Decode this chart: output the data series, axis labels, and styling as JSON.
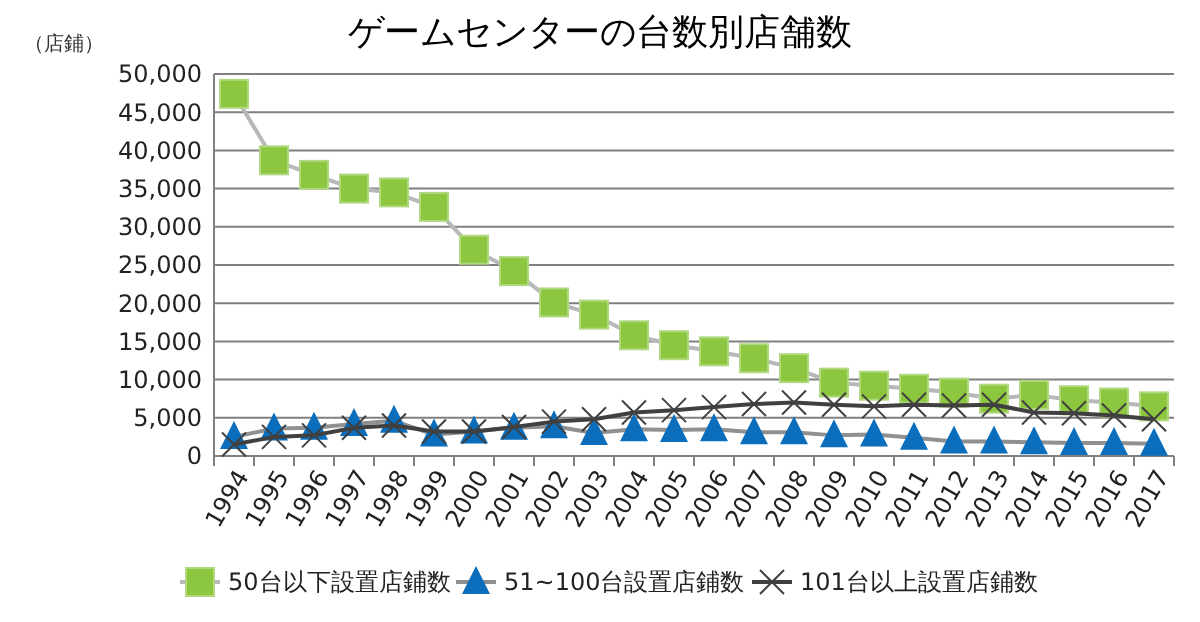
{
  "chart_data": {
    "type": "line",
    "title": "ゲームセンターの台数別店舗数",
    "ylabel": "（店鋪）",
    "categories": [
      "1994",
      "1995",
      "1996",
      "1997",
      "1998",
      "1999",
      "2000",
      "2001",
      "2002",
      "2003",
      "2004",
      "2005",
      "2006",
      "2007",
      "2008",
      "2009",
      "2010",
      "2011",
      "2012",
      "2013",
      "2014",
      "2015",
      "2016",
      "2017"
    ],
    "series": [
      {
        "name": "50台以下設置店鋪数",
        "color": "#8dc63f",
        "marker": "square",
        "values": [
          47400,
          38700,
          36800,
          35000,
          34500,
          32600,
          27000,
          24200,
          20100,
          18500,
          15800,
          14500,
          13700,
          12800,
          11500,
          9600,
          9200,
          8800,
          8300,
          7500,
          8000,
          7300,
          7000,
          6500
        ]
      },
      {
        "name": "51~100台設置店鋪数",
        "color": "#0a6ebd",
        "marker": "triangle",
        "values": [
          2500,
          3600,
          3700,
          4200,
          4600,
          2800,
          3200,
          3700,
          3900,
          3000,
          3500,
          3400,
          3500,
          3100,
          3100,
          2700,
          2800,
          2400,
          1900,
          1900,
          1800,
          1700,
          1700,
          1600
        ]
      },
      {
        "name": "101台以上設置店鋪数",
        "color": "#404040",
        "marker": "cross",
        "values": [
          1500,
          2500,
          2700,
          3700,
          4000,
          3200,
          3200,
          3800,
          4500,
          4800,
          5700,
          6000,
          6400,
          6800,
          7000,
          6700,
          6500,
          6700,
          6600,
          6700,
          5700,
          5600,
          5300,
          4800
        ]
      }
    ],
    "ylim": [
      0,
      50000
    ],
    "yticks": [
      {
        "value": 0,
        "label": "0"
      },
      {
        "value": 5000,
        "label": "5,000"
      },
      {
        "value": 10000,
        "label": "10,000"
      },
      {
        "value": 15000,
        "label": "15,000"
      },
      {
        "value": 20000,
        "label": "20,000"
      },
      {
        "value": 25000,
        "label": "25,000"
      },
      {
        "value": 30000,
        "label": "30,000"
      },
      {
        "value": 35000,
        "label": "35,000"
      },
      {
        "value": 40000,
        "label": "40,000"
      },
      {
        "value": 45000,
        "label": "45,000"
      },
      {
        "value": 50000,
        "label": "50,000"
      }
    ],
    "grid": "y",
    "legend": "bottom"
  }
}
